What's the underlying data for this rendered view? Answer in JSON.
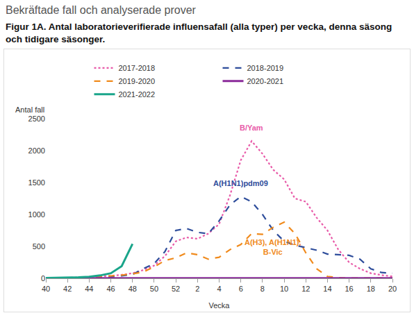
{
  "heading": "Bekräftade fall och analyserade prover",
  "chart_data": {
    "type": "line",
    "title": "Figur 1A. Antal laboratorieverifierade influensafall (alla typer) per vecka, denna säsong och tidigare säsonger.",
    "x_label": "Vecka",
    "y_label": "Antal fall",
    "categories": [
      "40",
      null,
      "42",
      null,
      "44",
      null,
      "46",
      null,
      "48",
      null,
      "50",
      null,
      "52",
      null,
      "2",
      null,
      "4",
      null,
      "6",
      null,
      "8",
      null,
      "10",
      null,
      "12",
      null,
      "14",
      null,
      "16",
      null,
      "18",
      null,
      "20"
    ],
    "series": [
      {
        "name": "2017-2018",
        "color": "#e85aa8",
        "line_style": "dotted",
        "values": [
          5,
          5,
          10,
          15,
          20,
          30,
          40,
          55,
          80,
          130,
          200,
          350,
          580,
          640,
          620,
          700,
          850,
          1300,
          1850,
          2150,
          1950,
          1700,
          1550,
          1250,
          1200,
          950,
          750,
          450,
          250,
          150,
          80,
          50,
          30
        ]
      },
      {
        "name": "2018-2019",
        "color": "#2e4d9b",
        "line_style": "dashed",
        "values": [
          5,
          5,
          5,
          10,
          10,
          15,
          20,
          40,
          60,
          150,
          230,
          420,
          750,
          780,
          720,
          700,
          900,
          1150,
          1280,
          1200,
          1000,
          750,
          580,
          520,
          480,
          440,
          380,
          370,
          360,
          300,
          150,
          90,
          80
        ]
      },
      {
        "name": "2019-2020",
        "color": "#f08a1c",
        "line_style": "dashed",
        "values": [
          5,
          5,
          10,
          10,
          15,
          25,
          35,
          50,
          70,
          100,
          180,
          280,
          320,
          400,
          370,
          300,
          330,
          450,
          530,
          700,
          690,
          800,
          880,
          700,
          400,
          150,
          30,
          10,
          5,
          5,
          5,
          5,
          5
        ]
      },
      {
        "name": "2020-2021",
        "color": "#8a2a9a",
        "line_style": "solid",
        "values": [
          3,
          3,
          3,
          3,
          3,
          3,
          3,
          3,
          3,
          3,
          3,
          3,
          3,
          3,
          3,
          3,
          3,
          3,
          3,
          3,
          3,
          3,
          3,
          3,
          3,
          3,
          3,
          3,
          3,
          3,
          3,
          3,
          3
        ]
      },
      {
        "name": "2021-2022",
        "color": "#1aa58a",
        "line_style": "solid",
        "values": [
          5,
          8,
          10,
          15,
          25,
          45,
          80,
          190,
          540,
          null,
          null,
          null,
          null,
          null,
          null,
          null,
          null,
          null,
          null,
          null,
          null,
          null,
          null,
          null,
          null,
          null,
          null,
          null,
          null,
          null,
          null,
          null,
          null
        ]
      }
    ],
    "annotations": [
      {
        "text": "B/Yam",
        "x": 19,
        "y": 2270,
        "color": "#e85aa8"
      },
      {
        "text": "A(H1N1)pdm09",
        "x": 18,
        "y": 1400,
        "color": "#2e4d9b"
      },
      {
        "text": "A(H3), A(H1N1),\nB-Vic",
        "x": 21,
        "y": 330,
        "color": "#f08a1c"
      }
    ],
    "ylim": [
      0,
      2500
    ],
    "yticks": [
      0,
      500,
      1000,
      1500,
      2000,
      2500
    ],
    "grid": false,
    "legend": "top"
  }
}
